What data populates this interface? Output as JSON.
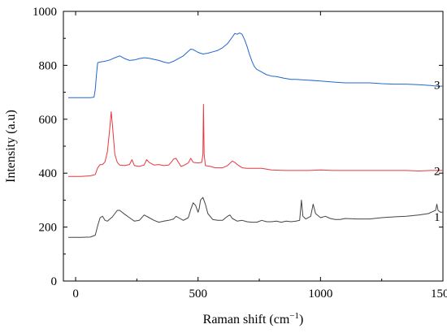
{
  "chart_data": {
    "type": "line",
    "title": "",
    "xlabel": "Raman shift (cm",
    "xlabel_sup": "−1",
    "xlabel_end": ")",
    "ylabel": "Intensity (a.u)",
    "xlim": [
      -50,
      1500
    ],
    "ylim": [
      0,
      1000
    ],
    "xticks": [
      {
        "value": 0,
        "label": "0"
      },
      {
        "value": 500,
        "label": "500"
      },
      {
        "value": 1000,
        "label": "1000"
      },
      {
        "value": 1500,
        "label": "1500"
      }
    ],
    "yticks": [
      {
        "value": 0,
        "label": "0"
      },
      {
        "value": 200,
        "label": "200"
      },
      {
        "value": 400,
        "label": "400"
      },
      {
        "value": 600,
        "label": "600"
      },
      {
        "value": 800,
        "label": "800"
      },
      {
        "value": 1000,
        "label": "1000"
      }
    ],
    "grid": false,
    "series": [
      {
        "name": "1",
        "color": "#444444",
        "end_label_value": 238,
        "points": [
          [
            -30,
            162
          ],
          [
            20,
            162
          ],
          [
            60,
            163
          ],
          [
            80,
            170
          ],
          [
            90,
            205
          ],
          [
            100,
            235
          ],
          [
            110,
            240
          ],
          [
            120,
            225
          ],
          [
            130,
            222
          ],
          [
            150,
            238
          ],
          [
            170,
            262
          ],
          [
            180,
            262
          ],
          [
            200,
            248
          ],
          [
            220,
            235
          ],
          [
            240,
            222
          ],
          [
            260,
            225
          ],
          [
            280,
            245
          ],
          [
            300,
            235
          ],
          [
            320,
            225
          ],
          [
            340,
            218
          ],
          [
            360,
            222
          ],
          [
            380,
            225
          ],
          [
            400,
            230
          ],
          [
            410,
            240
          ],
          [
            420,
            235
          ],
          [
            440,
            225
          ],
          [
            460,
            235
          ],
          [
            470,
            265
          ],
          [
            480,
            290
          ],
          [
            490,
            280
          ],
          [
            500,
            255
          ],
          [
            505,
            270
          ],
          [
            510,
            300
          ],
          [
            520,
            310
          ],
          [
            530,
            285
          ],
          [
            540,
            250
          ],
          [
            560,
            228
          ],
          [
            580,
            225
          ],
          [
            600,
            225
          ],
          [
            620,
            240
          ],
          [
            630,
            245
          ],
          [
            640,
            232
          ],
          [
            660,
            222
          ],
          [
            680,
            225
          ],
          [
            700,
            220
          ],
          [
            720,
            218
          ],
          [
            740,
            218
          ],
          [
            760,
            225
          ],
          [
            780,
            220
          ],
          [
            800,
            220
          ],
          [
            820,
            222
          ],
          [
            840,
            218
          ],
          [
            860,
            222
          ],
          [
            880,
            220
          ],
          [
            900,
            222
          ],
          [
            915,
            225
          ],
          [
            922,
            300
          ],
          [
            928,
            240
          ],
          [
            940,
            230
          ],
          [
            960,
            240
          ],
          [
            970,
            285
          ],
          [
            980,
            250
          ],
          [
            1000,
            235
          ],
          [
            1020,
            240
          ],
          [
            1040,
            232
          ],
          [
            1060,
            228
          ],
          [
            1080,
            228
          ],
          [
            1100,
            232
          ],
          [
            1150,
            230
          ],
          [
            1200,
            230
          ],
          [
            1250,
            235
          ],
          [
            1300,
            238
          ],
          [
            1350,
            240
          ],
          [
            1400,
            245
          ],
          [
            1440,
            250
          ],
          [
            1460,
            258
          ],
          [
            1470,
            262
          ],
          [
            1475,
            285
          ],
          [
            1480,
            262
          ],
          [
            1490,
            255
          ],
          [
            1500,
            255
          ]
        ]
      },
      {
        "name": "2",
        "color": "#e8383d",
        "end_label_value": 408,
        "points": [
          [
            -30,
            388
          ],
          [
            20,
            388
          ],
          [
            60,
            390
          ],
          [
            80,
            395
          ],
          [
            90,
            420
          ],
          [
            100,
            432
          ],
          [
            110,
            432
          ],
          [
            120,
            442
          ],
          [
            130,
            480
          ],
          [
            140,
            570
          ],
          [
            145,
            628
          ],
          [
            150,
            580
          ],
          [
            160,
            470
          ],
          [
            170,
            440
          ],
          [
            180,
            430
          ],
          [
            200,
            428
          ],
          [
            220,
            432
          ],
          [
            230,
            450
          ],
          [
            240,
            428
          ],
          [
            260,
            425
          ],
          [
            280,
            430
          ],
          [
            290,
            450
          ],
          [
            300,
            440
          ],
          [
            320,
            430
          ],
          [
            340,
            432
          ],
          [
            360,
            428
          ],
          [
            380,
            430
          ],
          [
            390,
            440
          ],
          [
            400,
            452
          ],
          [
            410,
            455
          ],
          [
            420,
            440
          ],
          [
            430,
            425
          ],
          [
            440,
            428
          ],
          [
            460,
            438
          ],
          [
            470,
            455
          ],
          [
            480,
            440
          ],
          [
            500,
            438
          ],
          [
            515,
            440
          ],
          [
            520,
            470
          ],
          [
            522,
            655
          ],
          [
            525,
            470
          ],
          [
            530,
            428
          ],
          [
            550,
            425
          ],
          [
            570,
            420
          ],
          [
            600,
            420
          ],
          [
            620,
            428
          ],
          [
            640,
            445
          ],
          [
            650,
            440
          ],
          [
            660,
            432
          ],
          [
            680,
            420
          ],
          [
            700,
            418
          ],
          [
            720,
            418
          ],
          [
            760,
            418
          ],
          [
            800,
            412
          ],
          [
            850,
            410
          ],
          [
            900,
            410
          ],
          [
            950,
            410
          ],
          [
            1000,
            412
          ],
          [
            1050,
            410
          ],
          [
            1100,
            410
          ],
          [
            1150,
            410
          ],
          [
            1200,
            410
          ],
          [
            1250,
            410
          ],
          [
            1300,
            410
          ],
          [
            1350,
            410
          ],
          [
            1400,
            408
          ],
          [
            1450,
            410
          ],
          [
            1500,
            410
          ]
        ]
      },
      {
        "name": "3",
        "color": "#1f66d1",
        "end_label_value": 728,
        "points": [
          [
            -30,
            680
          ],
          [
            20,
            680
          ],
          [
            60,
            680
          ],
          [
            75,
            682
          ],
          [
            80,
            710
          ],
          [
            85,
            765
          ],
          [
            90,
            810
          ],
          [
            100,
            812
          ],
          [
            120,
            815
          ],
          [
            140,
            820
          ],
          [
            160,
            828
          ],
          [
            180,
            835
          ],
          [
            200,
            825
          ],
          [
            220,
            818
          ],
          [
            240,
            820
          ],
          [
            260,
            825
          ],
          [
            280,
            828
          ],
          [
            300,
            826
          ],
          [
            320,
            822
          ],
          [
            340,
            818
          ],
          [
            360,
            812
          ],
          [
            380,
            808
          ],
          [
            400,
            815
          ],
          [
            420,
            825
          ],
          [
            440,
            835
          ],
          [
            460,
            852
          ],
          [
            470,
            860
          ],
          [
            480,
            858
          ],
          [
            500,
            848
          ],
          [
            520,
            842
          ],
          [
            540,
            845
          ],
          [
            560,
            850
          ],
          [
            580,
            855
          ],
          [
            600,
            865
          ],
          [
            620,
            880
          ],
          [
            640,
            905
          ],
          [
            650,
            918
          ],
          [
            660,
            915
          ],
          [
            670,
            920
          ],
          [
            680,
            915
          ],
          [
            690,
            895
          ],
          [
            700,
            870
          ],
          [
            710,
            840
          ],
          [
            720,
            815
          ],
          [
            730,
            795
          ],
          [
            740,
            785
          ],
          [
            760,
            775
          ],
          [
            780,
            765
          ],
          [
            800,
            760
          ],
          [
            820,
            758
          ],
          [
            850,
            752
          ],
          [
            880,
            748
          ],
          [
            900,
            748
          ],
          [
            950,
            745
          ],
          [
            1000,
            742
          ],
          [
            1050,
            738
          ],
          [
            1100,
            735
          ],
          [
            1150,
            735
          ],
          [
            1200,
            735
          ],
          [
            1250,
            732
          ],
          [
            1300,
            730
          ],
          [
            1350,
            730
          ],
          [
            1400,
            728
          ],
          [
            1450,
            725
          ],
          [
            1480,
            722
          ],
          [
            1500,
            723
          ]
        ]
      }
    ]
  }
}
